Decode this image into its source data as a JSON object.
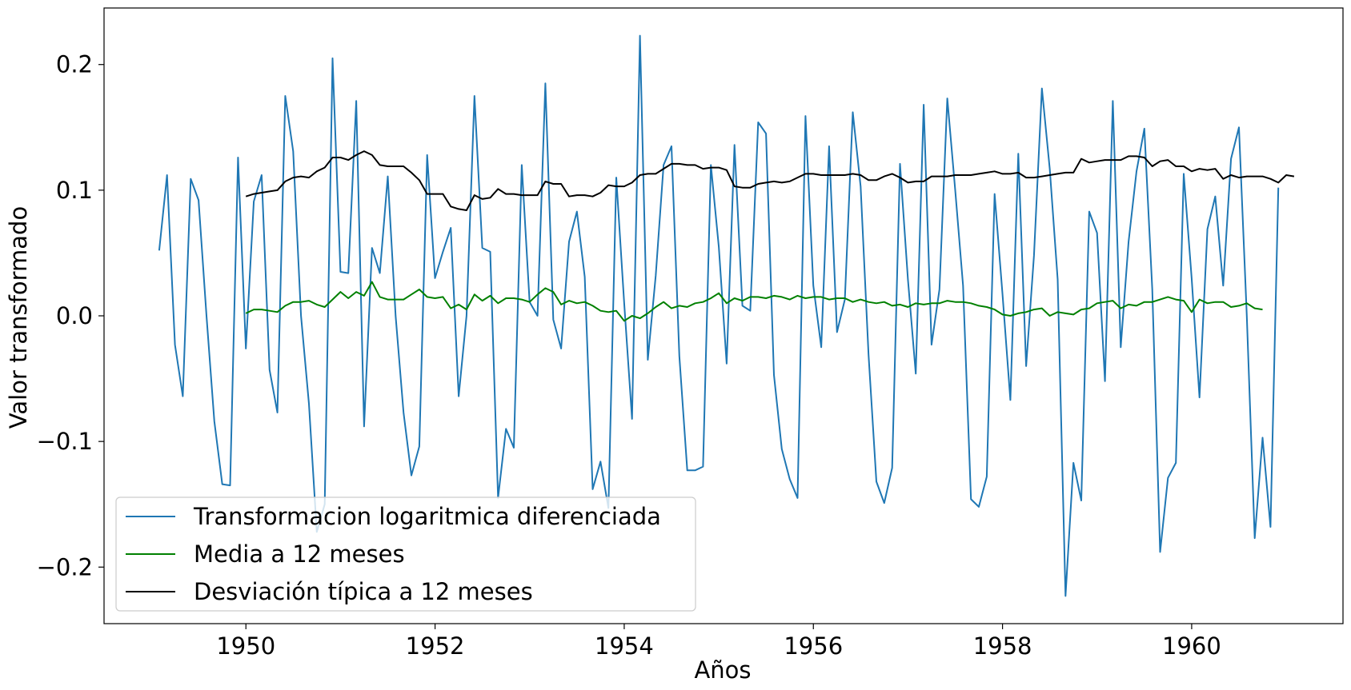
{
  "chart_data": {
    "type": "line",
    "title": "",
    "xlabel": "Años",
    "ylabel": "Valor transformado",
    "xlim": [
      1948.5,
      1961.6
    ],
    "ylim": [
      -0.245,
      0.245
    ],
    "xticks": [
      1950,
      1952,
      1954,
      1956,
      1958,
      1960
    ],
    "yticks": [
      -0.2,
      -0.1,
      0.0,
      0.1,
      0.2
    ],
    "ytick_labels": [
      "−0.2",
      "−0.1",
      "0.0",
      "0.1",
      "0.2"
    ],
    "grid": false,
    "legend_position": "lower-left",
    "x_start": 1949.083,
    "x_step": 0.0833333,
    "series": [
      {
        "name": "Transformacion logaritmica diferenciada",
        "color": "#1f77b4",
        "start_index": 0,
        "values": [
          0.052,
          0.112,
          -0.023,
          -0.064,
          0.109,
          0.092,
          0.0,
          -0.084,
          -0.134,
          -0.135,
          0.126,
          -0.026,
          0.091,
          0.112,
          -0.043,
          -0.077,
          0.175,
          0.131,
          0.0,
          -0.07,
          -0.172,
          -0.15,
          0.205,
          0.035,
          0.034,
          0.171,
          -0.088,
          0.054,
          0.034,
          0.111,
          0.0,
          -0.077,
          -0.127,
          -0.104,
          0.128,
          0.03,
          0.051,
          0.07,
          -0.064,
          0.0,
          0.175,
          0.054,
          0.051,
          -0.145,
          -0.09,
          -0.105,
          0.12,
          0.011,
          0.0,
          0.185,
          -0.003,
          -0.026,
          0.059,
          0.083,
          0.031,
          -0.138,
          -0.116,
          -0.153,
          0.11,
          0.01,
          -0.082,
          0.223,
          -0.035,
          0.032,
          0.12,
          0.135,
          -0.032,
          -0.123,
          -0.123,
          -0.12,
          0.12,
          0.055,
          -0.038,
          0.136,
          0.008,
          0.004,
          0.154,
          0.145,
          -0.047,
          -0.106,
          -0.13,
          -0.145,
          0.159,
          0.024,
          -0.025,
          0.135,
          -0.013,
          0.013,
          0.162,
          0.103,
          -0.031,
          -0.132,
          -0.149,
          -0.121,
          0.121,
          0.029,
          -0.046,
          0.168,
          -0.023,
          0.021,
          0.173,
          0.1,
          0.024,
          -0.146,
          -0.152,
          -0.128,
          0.097,
          0.017,
          -0.067,
          0.129,
          -0.04,
          0.048,
          0.181,
          0.117,
          0.029,
          -0.223,
          -0.117,
          -0.147,
          0.083,
          0.066,
          -0.052,
          0.171,
          -0.025,
          0.059,
          0.115,
          0.149,
          0.021,
          -0.188,
          -0.129,
          -0.117,
          0.113,
          0.03,
          -0.065,
          0.069,
          0.095,
          0.024,
          0.125,
          0.15,
          0.0,
          -0.177,
          -0.097,
          -0.168,
          0.102
        ]
      },
      {
        "name": "Media a 12 meses",
        "color": "#008000",
        "start_index": 11,
        "values": [
          0.002,
          0.005,
          0.005,
          0.004,
          0.003,
          0.008,
          0.011,
          0.011,
          0.012,
          0.009,
          0.007,
          0.013,
          0.019,
          0.014,
          0.019,
          0.016,
          0.027,
          0.015,
          0.013,
          0.013,
          0.013,
          0.017,
          0.021,
          0.015,
          0.014,
          0.015,
          0.006,
          0.009,
          0.005,
          0.017,
          0.012,
          0.016,
          0.01,
          0.014,
          0.014,
          0.013,
          0.011,
          0.017,
          0.022,
          0.019,
          0.009,
          0.012,
          0.01,
          0.011,
          0.008,
          0.004,
          0.003,
          0.004,
          -0.004,
          0.0,
          -0.002,
          0.002,
          0.007,
          0.011,
          0.006,
          0.008,
          0.007,
          0.01,
          0.011,
          0.014,
          0.018,
          0.01,
          0.014,
          0.012,
          0.015,
          0.015,
          0.014,
          0.016,
          0.015,
          0.013,
          0.016,
          0.014,
          0.015,
          0.015,
          0.013,
          0.014,
          0.014,
          0.011,
          0.013,
          0.011,
          0.01,
          0.011,
          0.008,
          0.009,
          0.007,
          0.01,
          0.009,
          0.01,
          0.01,
          0.012,
          0.011,
          0.011,
          0.01,
          0.008,
          0.007,
          0.005,
          0.001,
          0.0,
          0.002,
          0.003,
          0.005,
          0.006,
          0.0,
          0.003,
          0.002,
          0.001,
          0.005,
          0.006,
          0.01,
          0.011,
          0.012,
          0.006,
          0.009,
          0.008,
          0.011,
          0.011,
          0.013,
          0.015,
          0.013,
          0.012,
          0.003,
          0.013,
          0.01,
          0.011,
          0.011,
          0.007,
          0.008,
          0.01,
          0.006,
          0.005
        ]
      },
      {
        "name": "Desviación típica a 12 meses",
        "color": "#000000",
        "start_index": 11,
        "values": [
          0.095,
          0.097,
          0.098,
          0.099,
          0.1,
          0.107,
          0.11,
          0.111,
          0.11,
          0.115,
          0.118,
          0.126,
          0.126,
          0.124,
          0.128,
          0.131,
          0.128,
          0.12,
          0.119,
          0.119,
          0.119,
          0.114,
          0.108,
          0.097,
          0.097,
          0.097,
          0.087,
          0.085,
          0.084,
          0.096,
          0.093,
          0.094,
          0.101,
          0.097,
          0.097,
          0.096,
          0.096,
          0.096,
          0.107,
          0.105,
          0.105,
          0.095,
          0.096,
          0.096,
          0.095,
          0.098,
          0.104,
          0.103,
          0.103,
          0.106,
          0.112,
          0.113,
          0.113,
          0.117,
          0.121,
          0.121,
          0.12,
          0.12,
          0.117,
          0.118,
          0.118,
          0.116,
          0.103,
          0.102,
          0.102,
          0.105,
          0.106,
          0.107,
          0.106,
          0.107,
          0.11,
          0.113,
          0.113,
          0.112,
          0.112,
          0.112,
          0.112,
          0.113,
          0.112,
          0.108,
          0.108,
          0.111,
          0.113,
          0.11,
          0.106,
          0.107,
          0.107,
          0.111,
          0.111,
          0.111,
          0.112,
          0.112,
          0.112,
          0.113,
          0.114,
          0.115,
          0.113,
          0.113,
          0.114,
          0.11,
          0.11,
          0.111,
          0.112,
          0.113,
          0.114,
          0.114,
          0.125,
          0.122,
          0.123,
          0.124,
          0.124,
          0.124,
          0.127,
          0.127,
          0.126,
          0.119,
          0.123,
          0.124,
          0.119,
          0.119,
          0.115,
          0.117,
          0.116,
          0.117,
          0.109,
          0.112,
          0.11,
          0.111,
          0.111,
          0.111,
          0.109,
          0.106,
          0.112,
          0.111
        ]
      }
    ]
  }
}
